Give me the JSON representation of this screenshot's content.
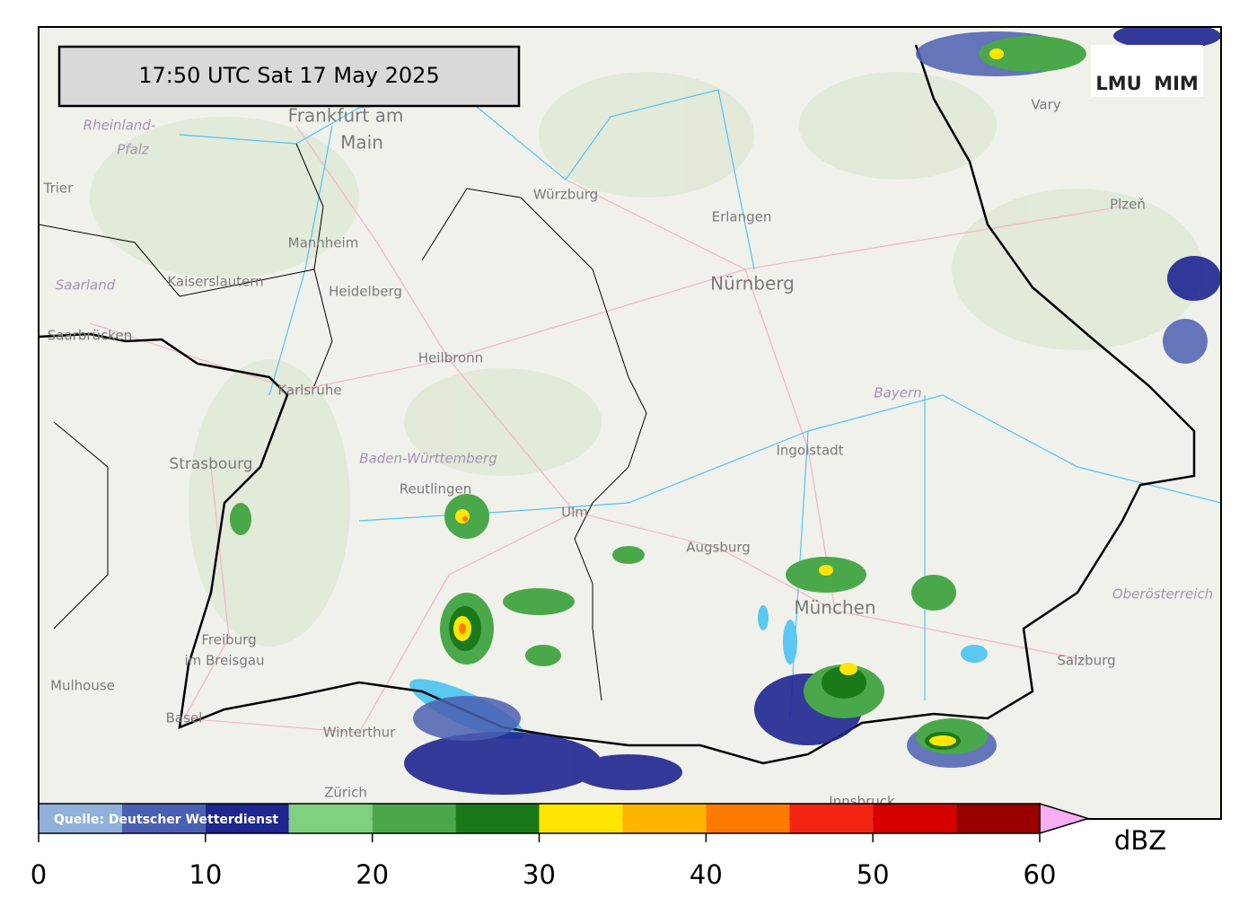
{
  "timestamp": "17:50 UTC  Sat 17 May 2025",
  "logo": [
    "LMU",
    "MIM"
  ],
  "places": [
    "Frankfurt am",
    "Main",
    "Rheinland-",
    "Pfalz",
    "Trier",
    "Würzburg",
    "Erlangen",
    "Nürnberg",
    "Plzeň",
    "Mannheim",
    "Kaiserslautern",
    "Heidelberg",
    "Saarland",
    "Saarbrücken",
    "Heilbronn",
    "Karlsruhe",
    "Bayern",
    "Strasbourg",
    "Baden-Württemberg",
    "Reutlingen",
    "Ulm",
    "Ingolstadt",
    "Augsburg",
    "München",
    "Oberösterreich",
    "Freiburg",
    "im Breisgau",
    "Mulhouse",
    "Basel",
    "Winterthur",
    "Zürich",
    "Salzburg",
    "Innsbruck",
    "Vary"
  ],
  "colorbar": {
    "source": "Quelle: Deutscher Wetterdienst",
    "unit": "dBZ",
    "lim": [
      0,
      60
    ],
    "bounds": [
      0,
      5,
      10,
      15,
      20,
      25,
      30,
      35,
      40,
      45,
      50,
      55,
      60
    ],
    "colors": [
      "#8fb1da",
      "#4b5fb2",
      "#1e2690",
      "#7fd07f",
      "#4aa84a",
      "#1a7a1a",
      "#ffe600",
      "#ffb400",
      "#ff7a00",
      "#f22412",
      "#d60000",
      "#9b0000"
    ],
    "extend_color": "#f7aef2",
    "ticks": [
      0,
      10,
      20,
      30,
      40,
      50,
      60
    ]
  }
}
